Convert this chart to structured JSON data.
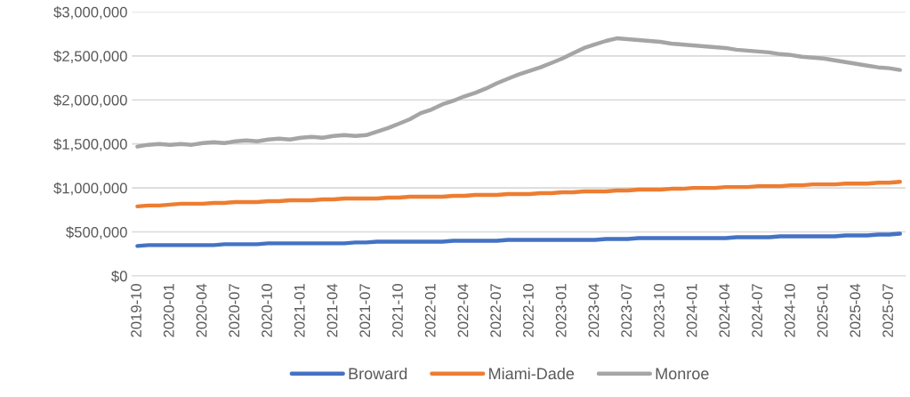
{
  "chart_data": {
    "type": "line",
    "categories": [
      "2019-10",
      null,
      null,
      "2020-01",
      null,
      null,
      "2020-04",
      null,
      null,
      "2020-07",
      null,
      null,
      "2020-10",
      null,
      null,
      "2021-01",
      null,
      null,
      "2021-04",
      null,
      null,
      "2021-07",
      null,
      null,
      "2021-10",
      null,
      null,
      "2022-01",
      null,
      null,
      "2022-04",
      null,
      null,
      "2022-07",
      null,
      null,
      "2022-10",
      null,
      null,
      "2023-01",
      null,
      null,
      "2023-04",
      null,
      null,
      "2023-07",
      null,
      null,
      "2023-10",
      null,
      null,
      "2024-01",
      null,
      null,
      "2024-04",
      null,
      null,
      "2024-07",
      null,
      null,
      "2024-10",
      null,
      null,
      "2025-01",
      null,
      null,
      "2025-04",
      null,
      null,
      "2025-07",
      null
    ],
    "series": [
      {
        "name": "Broward",
        "color": "#4472c4",
        "values": [
          340000,
          350000,
          350000,
          350000,
          350000,
          350000,
          350000,
          350000,
          360000,
          360000,
          360000,
          360000,
          370000,
          370000,
          370000,
          370000,
          370000,
          370000,
          370000,
          370000,
          380000,
          380000,
          390000,
          390000,
          390000,
          390000,
          390000,
          390000,
          390000,
          400000,
          400000,
          400000,
          400000,
          400000,
          410000,
          410000,
          410000,
          410000,
          410000,
          410000,
          410000,
          410000,
          410000,
          420000,
          420000,
          420000,
          430000,
          430000,
          430000,
          430000,
          430000,
          430000,
          430000,
          430000,
          430000,
          440000,
          440000,
          440000,
          440000,
          450000,
          450000,
          450000,
          450000,
          450000,
          450000,
          460000,
          460000,
          460000,
          470000,
          470000,
          480000
        ]
      },
      {
        "name": "Miami-Dade",
        "color": "#ed7d31",
        "values": [
          790000,
          800000,
          800000,
          810000,
          820000,
          820000,
          820000,
          830000,
          830000,
          840000,
          840000,
          840000,
          850000,
          850000,
          860000,
          860000,
          860000,
          870000,
          870000,
          880000,
          880000,
          880000,
          880000,
          890000,
          890000,
          900000,
          900000,
          900000,
          900000,
          910000,
          910000,
          920000,
          920000,
          920000,
          930000,
          930000,
          930000,
          940000,
          940000,
          950000,
          950000,
          960000,
          960000,
          960000,
          970000,
          970000,
          980000,
          980000,
          980000,
          990000,
          990000,
          1000000,
          1000000,
          1000000,
          1010000,
          1010000,
          1010000,
          1020000,
          1020000,
          1020000,
          1030000,
          1030000,
          1040000,
          1040000,
          1040000,
          1050000,
          1050000,
          1050000,
          1060000,
          1060000,
          1070000
        ]
      },
      {
        "name": "Monroe",
        "color": "#a5a5a5",
        "values": [
          1470000,
          1490000,
          1500000,
          1490000,
          1500000,
          1490000,
          1510000,
          1520000,
          1510000,
          1530000,
          1540000,
          1530000,
          1550000,
          1560000,
          1550000,
          1570000,
          1580000,
          1570000,
          1590000,
          1600000,
          1590000,
          1600000,
          1640000,
          1680000,
          1730000,
          1780000,
          1850000,
          1890000,
          1950000,
          1990000,
          2040000,
          2080000,
          2130000,
          2190000,
          2240000,
          2290000,
          2330000,
          2370000,
          2420000,
          2470000,
          2530000,
          2590000,
          2630000,
          2670000,
          2700000,
          2690000,
          2680000,
          2670000,
          2660000,
          2640000,
          2630000,
          2620000,
          2610000,
          2600000,
          2590000,
          2570000,
          2560000,
          2550000,
          2540000,
          2520000,
          2510000,
          2490000,
          2480000,
          2470000,
          2450000,
          2430000,
          2410000,
          2390000,
          2370000,
          2360000,
          2340000
        ]
      }
    ],
    "ylim": [
      0,
      3000000
    ],
    "yticks": [
      {
        "value": 0,
        "label": "$0"
      },
      {
        "value": 500000,
        "label": "$500,000"
      },
      {
        "value": 1000000,
        "label": "$1,000,000"
      },
      {
        "value": 1500000,
        "label": "$1,500,000"
      },
      {
        "value": 2000000,
        "label": "$2,000,000"
      },
      {
        "value": 2500000,
        "label": "$2,500,000"
      },
      {
        "value": 3000000,
        "label": "$3,000,000"
      }
    ],
    "grid": "y",
    "legend": "bottom",
    "marker": "none",
    "line_style": "solid"
  }
}
